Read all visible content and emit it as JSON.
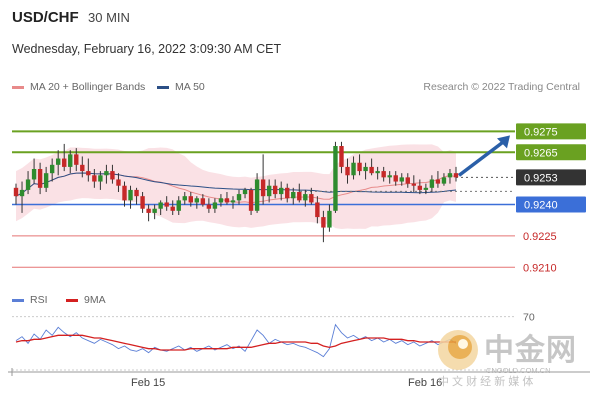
{
  "header": {
    "symbol": "USD/CHF",
    "timeframe": "30 MIN"
  },
  "date_line": "Wednesday, February 16, 2022 3:09:30 AM CET",
  "legend": [
    {
      "label": "MA 20 + Bollinger Bands",
      "color": "#e88a8a"
    },
    {
      "label": "MA 50",
      "color": "#2b4f86"
    }
  ],
  "source": "Research © 2022 Trading Central",
  "rsi_legend": [
    {
      "label": "RSI",
      "color": "#5b7fd6"
    },
    {
      "label": "9MA",
      "color": "#d42020"
    }
  ],
  "watermark": {
    "cn": "中金网",
    "domain": "CNGOLD.COM.CN",
    "sub": "中 文 财 经 新 媒 体"
  },
  "colors": {
    "up": "#2e8b2e",
    "down": "#c62828",
    "resistance": "#6aa121",
    "support": "#3b6fd8",
    "target": "#e57373"
  },
  "chart_data": [
    {
      "type": "candlestick",
      "ylim": [
        0.9202,
        0.929
      ],
      "x_ticks": [
        "Feb 15",
        "Feb 16"
      ],
      "levels": [
        {
          "value": 0.9275,
          "label": "0.9275",
          "kind": "resistance"
        },
        {
          "value": 0.9265,
          "label": "0.9265",
          "kind": "resistance"
        },
        {
          "value": 0.9253,
          "label": "0.9253",
          "kind": "current"
        },
        {
          "value": 0.924,
          "label": "0.9240",
          "kind": "pivot"
        },
        {
          "value": 0.9225,
          "label": "0.9225",
          "kind": "support"
        },
        {
          "value": 0.921,
          "label": "0.9210",
          "kind": "support"
        }
      ],
      "candles": [
        [
          0.9248,
          0.925,
          0.924,
          0.9244
        ],
        [
          0.9244,
          0.9251,
          0.9236,
          0.9247
        ],
        [
          0.9247,
          0.9256,
          0.9245,
          0.9252
        ],
        [
          0.9252,
          0.9262,
          0.925,
          0.9257
        ],
        [
          0.9257,
          0.926,
          0.9245,
          0.9248
        ],
        [
          0.9248,
          0.9258,
          0.9246,
          0.9255
        ],
        [
          0.9255,
          0.9262,
          0.9251,
          0.9259
        ],
        [
          0.9259,
          0.9266,
          0.9254,
          0.9262
        ],
        [
          0.9262,
          0.9269,
          0.9256,
          0.9258
        ],
        [
          0.9258,
          0.9266,
          0.9255,
          0.9264
        ],
        [
          0.9264,
          0.9267,
          0.9256,
          0.9259
        ],
        [
          0.9259,
          0.9263,
          0.9253,
          0.9256
        ],
        [
          0.9256,
          0.9262,
          0.9251,
          0.9254
        ],
        [
          0.9254,
          0.9257,
          0.9248,
          0.9251
        ],
        [
          0.9251,
          0.9256,
          0.9247,
          0.9254
        ],
        [
          0.9254,
          0.9259,
          0.925,
          0.9256
        ],
        [
          0.9256,
          0.9259,
          0.925,
          0.9252
        ],
        [
          0.9252,
          0.9255,
          0.9246,
          0.9249
        ],
        [
          0.9249,
          0.9251,
          0.9239,
          0.9242
        ],
        [
          0.9242,
          0.9249,
          0.9238,
          0.9247
        ],
        [
          0.9247,
          0.9248,
          0.924,
          0.9244
        ],
        [
          0.9244,
          0.9246,
          0.9236,
          0.9238
        ],
        [
          0.9238,
          0.924,
          0.9232,
          0.9236
        ],
        [
          0.9236,
          0.924,
          0.9233,
          0.9238
        ],
        [
          0.9238,
          0.9242,
          0.9235,
          0.9241
        ],
        [
          0.9241,
          0.9244,
          0.9237,
          0.9239
        ],
        [
          0.9239,
          0.9242,
          0.9235,
          0.9237
        ],
        [
          0.9237,
          0.9244,
          0.9235,
          0.9242
        ],
        [
          0.9242,
          0.9246,
          0.924,
          0.9244
        ],
        [
          0.9244,
          0.9246,
          0.9239,
          0.9241
        ],
        [
          0.9241,
          0.9244,
          0.9238,
          0.9243
        ],
        [
          0.9243,
          0.9245,
          0.9239,
          0.924
        ],
        [
          0.924,
          0.9243,
          0.9236,
          0.9238
        ],
        [
          0.9238,
          0.9243,
          0.9236,
          0.9241
        ],
        [
          0.9241,
          0.9245,
          0.9239,
          0.9243
        ],
        [
          0.9243,
          0.9246,
          0.924,
          0.9241
        ],
        [
          0.9241,
          0.9244,
          0.9238,
          0.9242
        ],
        [
          0.9242,
          0.9247,
          0.924,
          0.9245
        ],
        [
          0.9245,
          0.9248,
          0.9243,
          0.9247
        ],
        [
          0.9247,
          0.9248,
          0.9235,
          0.9237
        ],
        [
          0.9237,
          0.9255,
          0.9236,
          0.9252
        ],
        [
          0.9252,
          0.9264,
          0.924,
          0.9244
        ],
        [
          0.9244,
          0.9252,
          0.9241,
          0.9249
        ],
        [
          0.9249,
          0.9252,
          0.9243,
          0.9245
        ],
        [
          0.9245,
          0.9251,
          0.9242,
          0.9248
        ],
        [
          0.9248,
          0.925,
          0.9241,
          0.9243
        ],
        [
          0.9243,
          0.9248,
          0.924,
          0.9246
        ],
        [
          0.9246,
          0.925,
          0.9241,
          0.9242
        ],
        [
          0.9242,
          0.9247,
          0.9239,
          0.9245
        ],
        [
          0.9245,
          0.9248,
          0.924,
          0.9241
        ],
        [
          0.9241,
          0.9244,
          0.9231,
          0.9234
        ],
        [
          0.9234,
          0.9237,
          0.9222,
          0.9229
        ],
        [
          0.9229,
          0.924,
          0.9227,
          0.9237
        ],
        [
          0.9237,
          0.927,
          0.9236,
          0.9268
        ],
        [
          0.9268,
          0.927,
          0.9255,
          0.9258
        ],
        [
          0.9258,
          0.9262,
          0.925,
          0.9254
        ],
        [
          0.9254,
          0.9263,
          0.9252,
          0.926
        ],
        [
          0.926,
          0.9264,
          0.9254,
          0.9256
        ],
        [
          0.9256,
          0.926,
          0.9252,
          0.9258
        ],
        [
          0.9258,
          0.9262,
          0.9254,
          0.9255
        ],
        [
          0.9255,
          0.9258,
          0.9252,
          0.9256
        ],
        [
          0.9256,
          0.9258,
          0.9251,
          0.9253
        ],
        [
          0.9253,
          0.9256,
          0.925,
          0.9254
        ],
        [
          0.9254,
          0.9256,
          0.9249,
          0.9251
        ],
        [
          0.9251,
          0.9255,
          0.9249,
          0.9253
        ],
        [
          0.9253,
          0.9255,
          0.9248,
          0.925
        ],
        [
          0.925,
          0.9254,
          0.9246,
          0.9249
        ],
        [
          0.9249,
          0.9252,
          0.9245,
          0.9247
        ],
        [
          0.9247,
          0.925,
          0.9245,
          0.9248
        ],
        [
          0.9248,
          0.9254,
          0.9246,
          0.9252
        ],
        [
          0.9252,
          0.9256,
          0.9248,
          0.925
        ],
        [
          0.925,
          0.9255,
          0.9249,
          0.9253
        ],
        [
          0.9253,
          0.9257,
          0.925,
          0.9255
        ],
        [
          0.9255,
          0.9258,
          0.9251,
          0.9253
        ]
      ]
    },
    {
      "type": "line",
      "title": "RSI",
      "ylim": [
        30,
        75
      ],
      "y_ticks": [
        "70"
      ],
      "series": [
        {
          "name": "RSI",
          "values": [
            52,
            55,
            50,
            57,
            53,
            60,
            56,
            62,
            58,
            55,
            58,
            54,
            52,
            50,
            53,
            51,
            49,
            46,
            48,
            45,
            44,
            46,
            43,
            47,
            45,
            44,
            46,
            48,
            45,
            47,
            44,
            46,
            48,
            45,
            47,
            49,
            46,
            48,
            44,
            52,
            60,
            56,
            50,
            53,
            51,
            49,
            50,
            48,
            47,
            45,
            43,
            40,
            46,
            64,
            58,
            54,
            56,
            53,
            55,
            52,
            54,
            51,
            53,
            50,
            52,
            49,
            51,
            48,
            50,
            52,
            49,
            51,
            53,
            50
          ]
        },
        {
          "name": "9MA",
          "values": [
            51,
            52,
            52,
            53,
            53,
            54,
            55,
            56,
            56,
            56,
            56,
            56,
            55,
            54,
            54,
            53,
            52,
            51,
            50,
            49,
            48,
            47,
            46,
            46,
            45,
            45,
            45,
            45,
            45,
            46,
            46,
            46,
            46,
            46,
            46,
            46,
            47,
            47,
            47,
            47,
            48,
            49,
            50,
            50,
            51,
            51,
            51,
            51,
            51,
            50,
            50,
            48,
            47,
            48,
            50,
            51,
            52,
            53,
            54,
            54,
            54,
            54,
            53,
            53,
            53,
            52,
            52,
            51,
            51,
            51,
            51,
            51,
            51,
            51
          ]
        }
      ]
    }
  ]
}
